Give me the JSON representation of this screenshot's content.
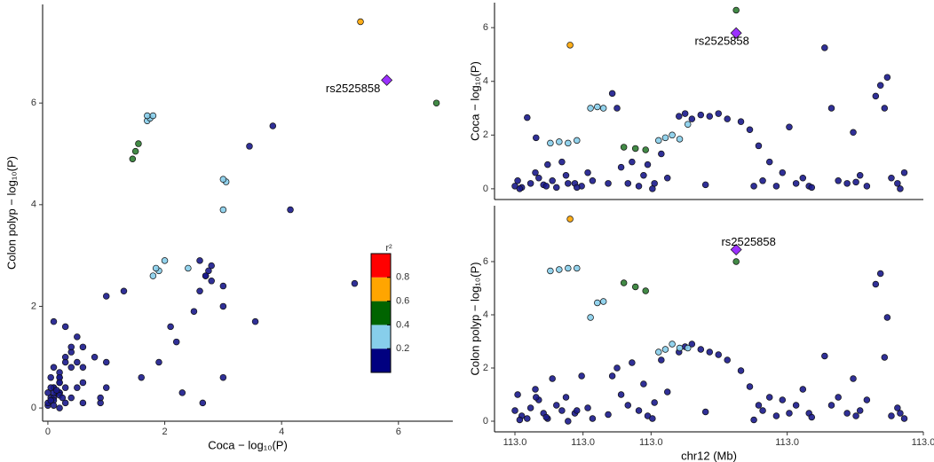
{
  "chart_data": [
    {
      "type": "scatter",
      "xlabel": "Coca − log₁₀(P)",
      "ylabel": "Colon polyp − log₁₀(P)",
      "xlim": [
        -0.09,
        6.93
      ],
      "ylim": [
        -0.26,
        7.94
      ],
      "xticks": [
        0,
        2,
        4,
        6
      ],
      "yticks": [
        0,
        2,
        4,
        6
      ],
      "series": [
        {
          "color": "#1a1a8c",
          "x": [
            0.1,
            0.3,
            0.05,
            2.65,
            0.2,
            0.6,
            0.4,
            0.15,
            0.9,
            0.3,
            0.05,
            1.0,
            0.5,
            0.2,
            0.1,
            0.6,
            0.3,
            3.55,
            3.0,
            0.8,
            0.2,
            1.0,
            0.1,
            0.5,
            0.9,
            0.2,
            1.3,
            0.4,
            2.7,
            2.8,
            2.6,
            2.75,
            2.7,
            2.8,
            2.6,
            2.5,
            2.2,
            1.6,
            0.3,
            1.0,
            0.1,
            0.6,
            2.3,
            0.2,
            0.4,
            0.1,
            5.25,
            3.0,
            0.3,
            0.2,
            2.1,
            0.5,
            0.1,
            3.45,
            3.85,
            3.0,
            4.15,
            0.4,
            0.2,
            0.6,
            0.2,
            1.9,
            0.0,
            0.1,
            0.05,
            0.2,
            0.0,
            0.15,
            0.1,
            0.05,
            0.25,
            0.0
          ],
          "values": [
            0.4,
            1.0,
            0.2,
            0.1,
            0.5,
            1.2,
            0.8,
            0.3,
            0.1,
            1.6,
            0.6,
            0.4,
            0.9,
            0.3,
            1.7,
            0.5,
            0.1,
            1.7,
            2.0,
            1.0,
            0.6,
            2.2,
            0.4,
            1.4,
            0.2,
            0.7,
            2.3,
            1.1,
            2.6,
            2.8,
            2.9,
            2.7,
            2.6,
            2.5,
            2.3,
            1.9,
            1.3,
            0.6,
            0.4,
            0.9,
            0.2,
            0.8,
            0.3,
            0.6,
            1.2,
            0.3,
            2.45,
            0.6,
            0.9,
            0.3,
            1.6,
            0.4,
            0.8,
            5.15,
            5.55,
            2.4,
            3.9,
            0.2,
            0.5,
            0.1,
            0.0,
            0.9,
            0.05,
            0.15,
            0.4,
            0.25,
            0.1,
            0.35,
            0.05,
            0.15,
            0.2,
            0.3
          ]
        },
        {
          "color": "#87ceeb",
          "x": [
            1.7,
            1.75,
            1.7,
            1.8,
            3.0,
            3.05,
            3.0,
            1.8,
            1.9,
            2.0,
            1.85,
            2.4
          ],
          "values": [
            5.65,
            5.7,
            5.75,
            5.75,
            3.9,
            4.45,
            4.5,
            2.6,
            2.7,
            2.9,
            2.75,
            2.75
          ]
        },
        {
          "color": "#2e7d32",
          "x": [
            1.55,
            1.5,
            1.45,
            6.65
          ],
          "values": [
            5.2,
            5.05,
            4.9,
            6.0
          ]
        },
        {
          "color": "#ffa500",
          "x": [
            5.35
          ],
          "values": [
            7.6
          ]
        },
        {
          "color": "#9b30ff",
          "marker": "diamond",
          "x": [
            5.8
          ],
          "values": [
            6.45
          ]
        }
      ],
      "annotation": {
        "text": "rs2525858",
        "position": "lower left"
      },
      "legend": {
        "title": "r²",
        "lim": [
          0,
          1
        ],
        "ticks": [
          0.2,
          0.4,
          0.6,
          0.8
        ],
        "colors": [
          "#000080",
          "#87ceeb",
          "#006400",
          "#ffa500",
          "#ff0000"
        ]
      }
    },
    {
      "type": "scatter",
      "ylabel": "Coca − log₁₀(P)",
      "xlim": [
        112.977,
        113.04
      ],
      "ylim": [
        -0.4,
        6.93
      ],
      "yticks": [
        0,
        2,
        4,
        6
      ],
      "series": [
        {
          "color": "#1a1a8c",
          "x": [
            112.98,
            112.9804,
            112.981,
            112.9818,
            112.9823,
            112.983,
            112.9835,
            112.9842,
            112.9848,
            112.9855,
            112.9861,
            112.9869,
            112.9875,
            112.9888,
            112.9898,
            112.9907,
            112.9914,
            112.9943,
            112.995,
            112.9956,
            112.9966,
            112.9972,
            112.9982,
            112.9989,
            112.9995,
            113.0005,
            113.0015,
            113.0024,
            113.0041,
            113.005,
            113.006,
            113.0073,
            113.0086,
            113.0099,
            113.0112,
            113.0132,
            113.0145,
            113.0158,
            113.0164,
            113.0174,
            113.0184,
            113.0193,
            113.0203,
            113.0213,
            113.0223,
            113.0232,
            113.0255,
            113.0265,
            113.0275,
            113.0288,
            113.0297,
            113.0307,
            113.0317,
            113.033,
            113.0337,
            113.0343,
            113.0347,
            113.0353,
            113.0362,
            113.0372,
            112.9878,
            112.9831,
            112.9807,
            112.9846,
            112.9891,
            112.9937,
            113.0002,
            113.008,
            113.0151,
            113.0236,
            113.0301,
            113.0366
          ],
          "values": [
            0.1,
            0.3,
            0.05,
            2.65,
            0.2,
            0.6,
            0.4,
            0.15,
            0.9,
            0.3,
            0.05,
            1.0,
            0.5,
            0.2,
            0.1,
            0.6,
            0.3,
            3.55,
            3.0,
            0.8,
            0.2,
            1.0,
            0.1,
            0.5,
            0.9,
            0.2,
            1.3,
            0.4,
            2.7,
            2.8,
            2.6,
            2.75,
            2.7,
            2.8,
            2.6,
            2.5,
            2.2,
            1.6,
            0.3,
            1.0,
            0.1,
            0.6,
            2.3,
            0.2,
            0.4,
            0.1,
            5.25,
            3.0,
            0.3,
            0.2,
            2.1,
            0.5,
            0.1,
            3.45,
            3.85,
            3.0,
            4.15,
            0.4,
            0.2,
            0.6,
            0.2,
            1.9,
            0.0,
            0.1,
            0.05,
            0.2,
            0.0,
            0.15,
            0.1,
            0.05,
            0.25,
            0.0
          ]
        },
        {
          "color": "#87ceeb",
          "x": [
            112.9852,
            112.9865,
            112.9878,
            112.9891,
            112.9911,
            112.9921,
            112.993,
            113.0011,
            113.0021,
            113.0031,
            113.0042,
            113.0054
          ],
          "values": [
            1.7,
            1.75,
            1.7,
            1.8,
            3.0,
            3.05,
            3.0,
            1.8,
            1.9,
            2.0,
            1.85,
            2.4
          ]
        },
        {
          "color": "#2e7d32",
          "x": [
            112.996,
            112.9977,
            112.9992,
            113.0125
          ],
          "values": [
            1.55,
            1.5,
            1.45,
            6.65
          ]
        },
        {
          "color": "#ffa500",
          "x": [
            112.9881
          ],
          "values": [
            5.35
          ]
        },
        {
          "color": "#9b30ff",
          "marker": "diamond",
          "x": [
            113.0125
          ],
          "values": [
            5.8
          ]
        }
      ],
      "annotation": {
        "text": "rs2525858",
        "position": "below"
      }
    },
    {
      "type": "scatter",
      "xlabel": "chr12 (Mb)",
      "ylabel": "Colon polyp − log₁₀(P)",
      "xlim": [
        112.977,
        113.04
      ],
      "ylim": [
        -0.4,
        8.1
      ],
      "yticks": [
        0,
        2,
        4,
        6
      ],
      "xticks": [
        {
          "value": 112.98,
          "label": "113.0"
        },
        {
          "value": 112.99,
          "label": "113.0"
        },
        {
          "value": 113.0,
          "label": "113.0"
        },
        {
          "value": 113.02,
          "label": "113.0"
        },
        {
          "value": 113.04,
          "label": "113.0"
        }
      ],
      "series": [
        {
          "color": "#1a1a8c",
          "x": [
            112.98,
            112.9804,
            112.981,
            112.9818,
            112.9823,
            112.983,
            112.9835,
            112.9842,
            112.9848,
            112.9855,
            112.9861,
            112.9869,
            112.9875,
            112.9888,
            112.9898,
            112.9907,
            112.9914,
            112.9943,
            112.995,
            112.9956,
            112.9966,
            112.9972,
            112.9982,
            112.9989,
            112.9995,
            113.0005,
            113.0015,
            113.0024,
            113.0041,
            113.005,
            113.006,
            113.0073,
            113.0086,
            113.0099,
            113.0112,
            113.0132,
            113.0145,
            113.0158,
            113.0164,
            113.0174,
            113.0184,
            113.0193,
            113.0203,
            113.0213,
            113.0223,
            113.0232,
            113.0255,
            113.0265,
            113.0275,
            113.0288,
            113.0297,
            113.0307,
            113.0317,
            113.033,
            113.0337,
            113.0343,
            113.0347,
            113.0353,
            113.0362,
            113.0372,
            112.9878,
            112.9831,
            112.9807,
            112.9846,
            112.9891,
            112.9937,
            113.0002,
            113.008,
            113.0151,
            113.0236,
            113.0301,
            113.0366
          ],
          "values": [
            0.4,
            1.0,
            0.2,
            0.1,
            0.5,
            1.2,
            0.8,
            0.3,
            0.1,
            1.6,
            0.6,
            0.4,
            0.9,
            0.3,
            1.7,
            0.5,
            0.1,
            1.7,
            2.0,
            1.0,
            0.6,
            2.2,
            0.4,
            1.4,
            0.2,
            0.7,
            2.3,
            1.1,
            2.6,
            2.8,
            2.9,
            2.7,
            2.6,
            2.5,
            2.3,
            1.9,
            1.3,
            0.6,
            0.4,
            0.9,
            0.2,
            0.8,
            0.3,
            0.6,
            1.2,
            0.3,
            2.45,
            0.6,
            0.9,
            0.3,
            1.6,
            0.4,
            0.8,
            5.15,
            5.55,
            2.4,
            3.9,
            0.2,
            0.5,
            0.1,
            0.0,
            0.9,
            0.05,
            0.15,
            0.4,
            0.25,
            0.1,
            0.35,
            0.05,
            0.15,
            0.2,
            0.3
          ]
        },
        {
          "color": "#87ceeb",
          "x": [
            112.9852,
            112.9865,
            112.9878,
            112.9891,
            112.9911,
            112.9921,
            112.993,
            113.0011,
            113.0021,
            113.0031,
            113.0042,
            113.0054
          ],
          "values": [
            5.65,
            5.7,
            5.75,
            5.75,
            3.9,
            4.45,
            4.5,
            2.6,
            2.7,
            2.9,
            2.75,
            2.75
          ]
        },
        {
          "color": "#2e7d32",
          "x": [
            112.996,
            112.9977,
            112.9992,
            113.0125
          ],
          "values": [
            5.2,
            5.05,
            4.9,
            6.0
          ]
        },
        {
          "color": "#ffa500",
          "x": [
            112.9881
          ],
          "values": [
            7.6
          ]
        },
        {
          "color": "#9b30ff",
          "marker": "diamond",
          "x": [
            113.0125
          ],
          "values": [
            6.45
          ]
        }
      ],
      "annotation": {
        "text": "rs2525858",
        "position": "above"
      }
    }
  ]
}
